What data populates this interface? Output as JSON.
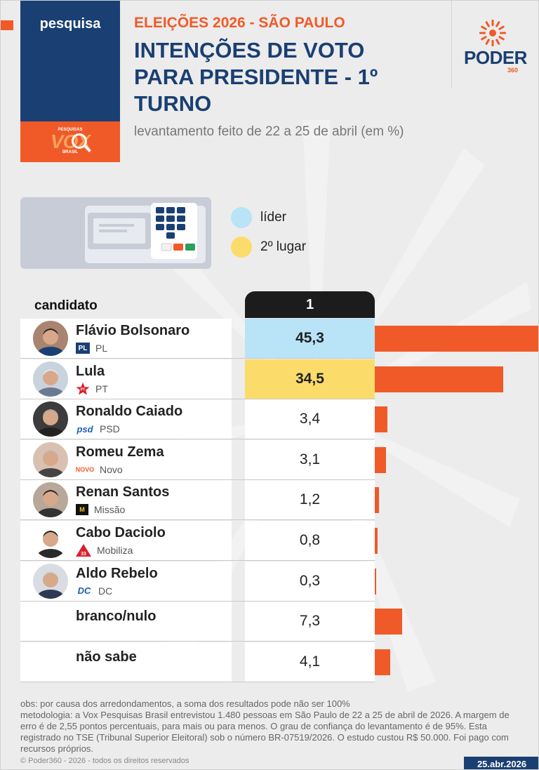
{
  "header": {
    "kicker": "pesquisa",
    "supertitle": "ELEIÇÕES 2026 - SÃO PAULO",
    "title": "INTENÇÕES DE VOTO PARA PRESIDENTE - 1º TURNO",
    "subtitle": "levantamento feito de 22 a 25 de abril (em %)",
    "pollster_logo": {
      "top": "PESQUISAS",
      "big": "VOX",
      "bottom": "BRASIL"
    },
    "publisher_logo": {
      "word": "PODER",
      "number": "360"
    }
  },
  "legend": {
    "items": [
      {
        "label": "líder",
        "color": "#b9e3f7"
      },
      {
        "label": "2º lugar",
        "color": "#fbdc6a"
      }
    ]
  },
  "table": {
    "candidate_header": "candidato",
    "round_header": "1"
  },
  "chart_data": {
    "type": "bar",
    "orientation": "horizontal",
    "title": "INTENÇÕES DE VOTO PARA PRESIDENTE - 1º TURNO",
    "unit": "%",
    "xlim": [
      0,
      100
    ],
    "bar_color": "#f05a28",
    "rows": [
      {
        "name": "Flávio Bolsonaro",
        "party": "PL",
        "value": 45.3,
        "label": "45,3",
        "rank": "líder",
        "icon": "pl-party-icon"
      },
      {
        "name": "Lula",
        "party": "PT",
        "value": 34.5,
        "label": "34,5",
        "rank": "2º lugar",
        "icon": "pt-star-icon"
      },
      {
        "name": "Ronaldo Caiado",
        "party": "PSD",
        "value": 3.4,
        "label": "3,4",
        "icon": "psd-party-icon"
      },
      {
        "name": "Romeu Zema",
        "party": "Novo",
        "value": 3.1,
        "label": "3,1",
        "icon": "novo-party-icon"
      },
      {
        "name": "Renan Santos",
        "party": "Missão",
        "value": 1.2,
        "label": "1,2",
        "icon": "missao-party-icon"
      },
      {
        "name": "Cabo Daciolo",
        "party": "Mobiliza",
        "value": 0.8,
        "label": "0,8",
        "icon": "mobiliza-party-icon"
      },
      {
        "name": "Aldo Rebelo",
        "party": "DC",
        "value": 0.3,
        "label": "0,3",
        "icon": "dc-party-icon"
      },
      {
        "name": "branco/nulo",
        "party": "",
        "value": 7.3,
        "label": "7,3"
      },
      {
        "name": "não sabe",
        "party": "",
        "value": 4.1,
        "label": "4,1"
      }
    ]
  },
  "footer": {
    "obs": "obs: por causa dos arredondamentos, a soma dos resultados pode não ser 100%",
    "method": "metodologia: a Vox Pesquisas Brasil entrevistou 1.480 pessoas em São Paulo de 22 a 25 de abril de 2026. A margem de erro é de 2,55 pontos percentuais, para mais ou para menos. O grau de confiança do levantamento é de 95%. Esta registrado no TSE (Tribunal Superior Eleitoral) sob o número BR-07519/2026. O estudo custou R$ 50.000. Foi pago com recursos próprios.",
    "copyright": "© Poder360 - 2026 - todos os direitos reservados",
    "date": "25.abr.2026"
  }
}
